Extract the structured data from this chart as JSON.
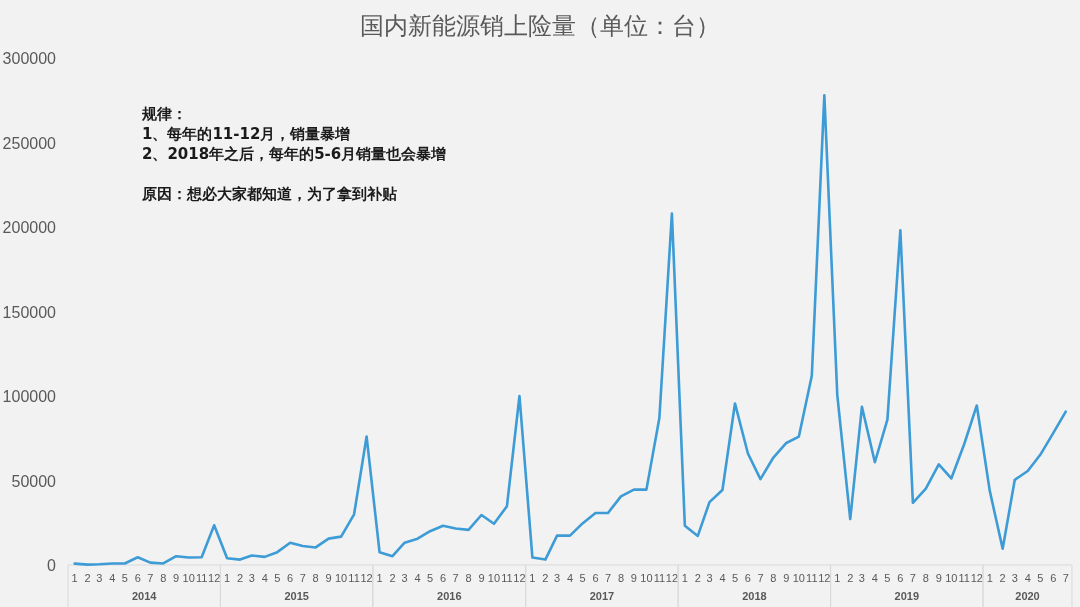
{
  "chart_data": {
    "type": "line",
    "title": "国内新能源销上险量（单位：台）",
    "x": [
      "2014-01",
      "2014-02",
      "2014-03",
      "2014-04",
      "2014-05",
      "2014-06",
      "2014-07",
      "2014-08",
      "2014-09",
      "2014-10",
      "2014-11",
      "2014-12",
      "2015-01",
      "2015-02",
      "2015-03",
      "2015-04",
      "2015-05",
      "2015-06",
      "2015-07",
      "2015-08",
      "2015-09",
      "2015-10",
      "2015-11",
      "2015-12",
      "2016-01",
      "2016-02",
      "2016-03",
      "2016-04",
      "2016-05",
      "2016-06",
      "2016-07",
      "2016-08",
      "2016-09",
      "2016-10",
      "2016-11",
      "2016-12",
      "2017-01",
      "2017-02",
      "2017-03",
      "2017-04",
      "2017-05",
      "2017-06",
      "2017-07",
      "2017-08",
      "2017-09",
      "2017-10",
      "2017-11",
      "2017-12",
      "2018-01",
      "2018-02",
      "2018-03",
      "2018-04",
      "2018-05",
      "2018-06",
      "2018-07",
      "2018-08",
      "2018-09",
      "2018-10",
      "2018-11",
      "2018-12",
      "2019-01",
      "2019-02",
      "2019-03",
      "2019-04",
      "2019-05",
      "2019-06",
      "2019-07",
      "2019-08",
      "2019-09",
      "2019-10",
      "2019-11",
      "2019-12",
      "2020-01",
      "2020-02",
      "2020-03",
      "2020-04",
      "2020-05",
      "2020-06",
      "2020-07"
    ],
    "series": [
      {
        "color": "#3d9bd6",
        "values": [
          800,
          200,
          400,
          900,
          900,
          4600,
          1400,
          900,
          5200,
          4400,
          4600,
          23500,
          4000,
          3200,
          5600,
          4800,
          7600,
          13200,
          11200,
          10400,
          15600,
          16800,
          30000,
          76000,
          7600,
          5200,
          13200,
          15600,
          20000,
          23200,
          21600,
          20800,
          29600,
          24400,
          34800,
          100000,
          4400,
          3200,
          17400,
          17400,
          24600,
          30800,
          30800,
          40600,
          44600,
          44600,
          87000,
          208000,
          23200,
          17200,
          37200,
          44400,
          95600,
          66000,
          50800,
          63600,
          72200,
          76000,
          112000,
          278000,
          100500,
          27200,
          93600,
          60800,
          86000,
          198000,
          36800,
          45200,
          59600,
          51200,
          71600,
          94400,
          44000,
          9600,
          50400,
          55600,
          65200,
          78000,
          90800
        ]
      }
    ],
    "xlim": [
      "2013-12-16",
      "2020-07-16"
    ],
    "xticks": [
      {
        "value": "2014-01",
        "label": "1"
      },
      {
        "value": "2014-02",
        "label": "2"
      },
      {
        "value": "2014-03",
        "label": "3"
      },
      {
        "value": "2014-04",
        "label": "4"
      },
      {
        "value": "2014-05",
        "label": "5"
      },
      {
        "value": "2014-06",
        "label": "6"
      },
      {
        "value": "2014-07",
        "label": "7"
      },
      {
        "value": "2014-08",
        "label": "8"
      },
      {
        "value": "2014-09",
        "label": "9"
      },
      {
        "value": "2014-10",
        "label": "10"
      },
      {
        "value": "2014-11",
        "label": "11"
      },
      {
        "value": "2014-12",
        "label": "12"
      },
      {
        "value": "2015-01",
        "label": "1"
      },
      {
        "value": "2015-02",
        "label": "2"
      },
      {
        "value": "2015-03",
        "label": "3"
      },
      {
        "value": "2015-04",
        "label": "4"
      },
      {
        "value": "2015-05",
        "label": "5"
      },
      {
        "value": "2015-06",
        "label": "6"
      },
      {
        "value": "2015-07",
        "label": "7"
      },
      {
        "value": "2015-08",
        "label": "8"
      },
      {
        "value": "2015-09",
        "label": "9"
      },
      {
        "value": "2015-10",
        "label": "10"
      },
      {
        "value": "2015-11",
        "label": "11"
      },
      {
        "value": "2015-12",
        "label": "12"
      },
      {
        "value": "2016-01",
        "label": "1"
      },
      {
        "value": "2016-02",
        "label": "2"
      },
      {
        "value": "2016-03",
        "label": "3"
      },
      {
        "value": "2016-04",
        "label": "4"
      },
      {
        "value": "2016-05",
        "label": "5"
      },
      {
        "value": "2016-06",
        "label": "6"
      },
      {
        "value": "2016-07",
        "label": "7"
      },
      {
        "value": "2016-08",
        "label": "8"
      },
      {
        "value": "2016-09",
        "label": "9"
      },
      {
        "value": "2016-10",
        "label": "10"
      },
      {
        "value": "2016-11",
        "label": "11"
      },
      {
        "value": "2016-12",
        "label": "12"
      },
      {
        "value": "2017-01",
        "label": "1"
      },
      {
        "value": "2017-02",
        "label": "2"
      },
      {
        "value": "2017-03",
        "label": "3"
      },
      {
        "value": "2017-04",
        "label": "4"
      },
      {
        "value": "2017-05",
        "label": "5"
      },
      {
        "value": "2017-06",
        "label": "6"
      },
      {
        "value": "2017-07",
        "label": "7"
      },
      {
        "value": "2017-08",
        "label": "8"
      },
      {
        "value": "2017-09",
        "label": "9"
      },
      {
        "value": "2017-10",
        "label": "10"
      },
      {
        "value": "2017-11",
        "label": "11"
      },
      {
        "value": "2017-12",
        "label": "12"
      },
      {
        "value": "2018-01",
        "label": "1"
      },
      {
        "value": "2018-02",
        "label": "2"
      },
      {
        "value": "2018-03",
        "label": "3"
      },
      {
        "value": "2018-04",
        "label": "4"
      },
      {
        "value": "2018-05",
        "label": "5"
      },
      {
        "value": "2018-06",
        "label": "6"
      },
      {
        "value": "2018-07",
        "label": "7"
      },
      {
        "value": "2018-08",
        "label": "8"
      },
      {
        "value": "2018-09",
        "label": "9"
      },
      {
        "value": "2018-10",
        "label": "10"
      },
      {
        "value": "2018-11",
        "label": "11"
      },
      {
        "value": "2018-12",
        "label": "12"
      },
      {
        "value": "2019-01",
        "label": "1"
      },
      {
        "value": "2019-02",
        "label": "2"
      },
      {
        "value": "2019-03",
        "label": "3"
      },
      {
        "value": "2019-04",
        "label": "4"
      },
      {
        "value": "2019-05",
        "label": "5"
      },
      {
        "value": "2019-06",
        "label": "6"
      },
      {
        "value": "2019-07",
        "label": "7"
      },
      {
        "value": "2019-08",
        "label": "8"
      },
      {
        "value": "2019-09",
        "label": "9"
      },
      {
        "value": "2019-10",
        "label": "10"
      },
      {
        "value": "2019-11",
        "label": "11"
      },
      {
        "value": "2019-12",
        "label": "12"
      },
      {
        "value": "2020-01",
        "label": "1"
      },
      {
        "value": "2020-02",
        "label": "2"
      },
      {
        "value": "2020-03",
        "label": "3"
      },
      {
        "value": "2020-04",
        "label": "4"
      },
      {
        "value": "2020-05",
        "label": "5"
      },
      {
        "value": "2020-06",
        "label": "6"
      },
      {
        "value": "2020-07",
        "label": "7"
      }
    ],
    "ylim": [
      0,
      300000
    ],
    "yticks": [
      0,
      50000,
      100000,
      150000,
      200000,
      250000,
      300000
    ],
    "grid": false,
    "marker": "none",
    "line_style": "solid",
    "annotations": [
      "规律：",
      "1、每年的11-12月，销量暴增",
      "2、2018年之后，每年的5-6月销量也会暴增",
      "原因：想必大家都知道，为了拿到补贴",
      "2014",
      "2015",
      "2016",
      "2017",
      "2018",
      "2019",
      "2020"
    ]
  }
}
